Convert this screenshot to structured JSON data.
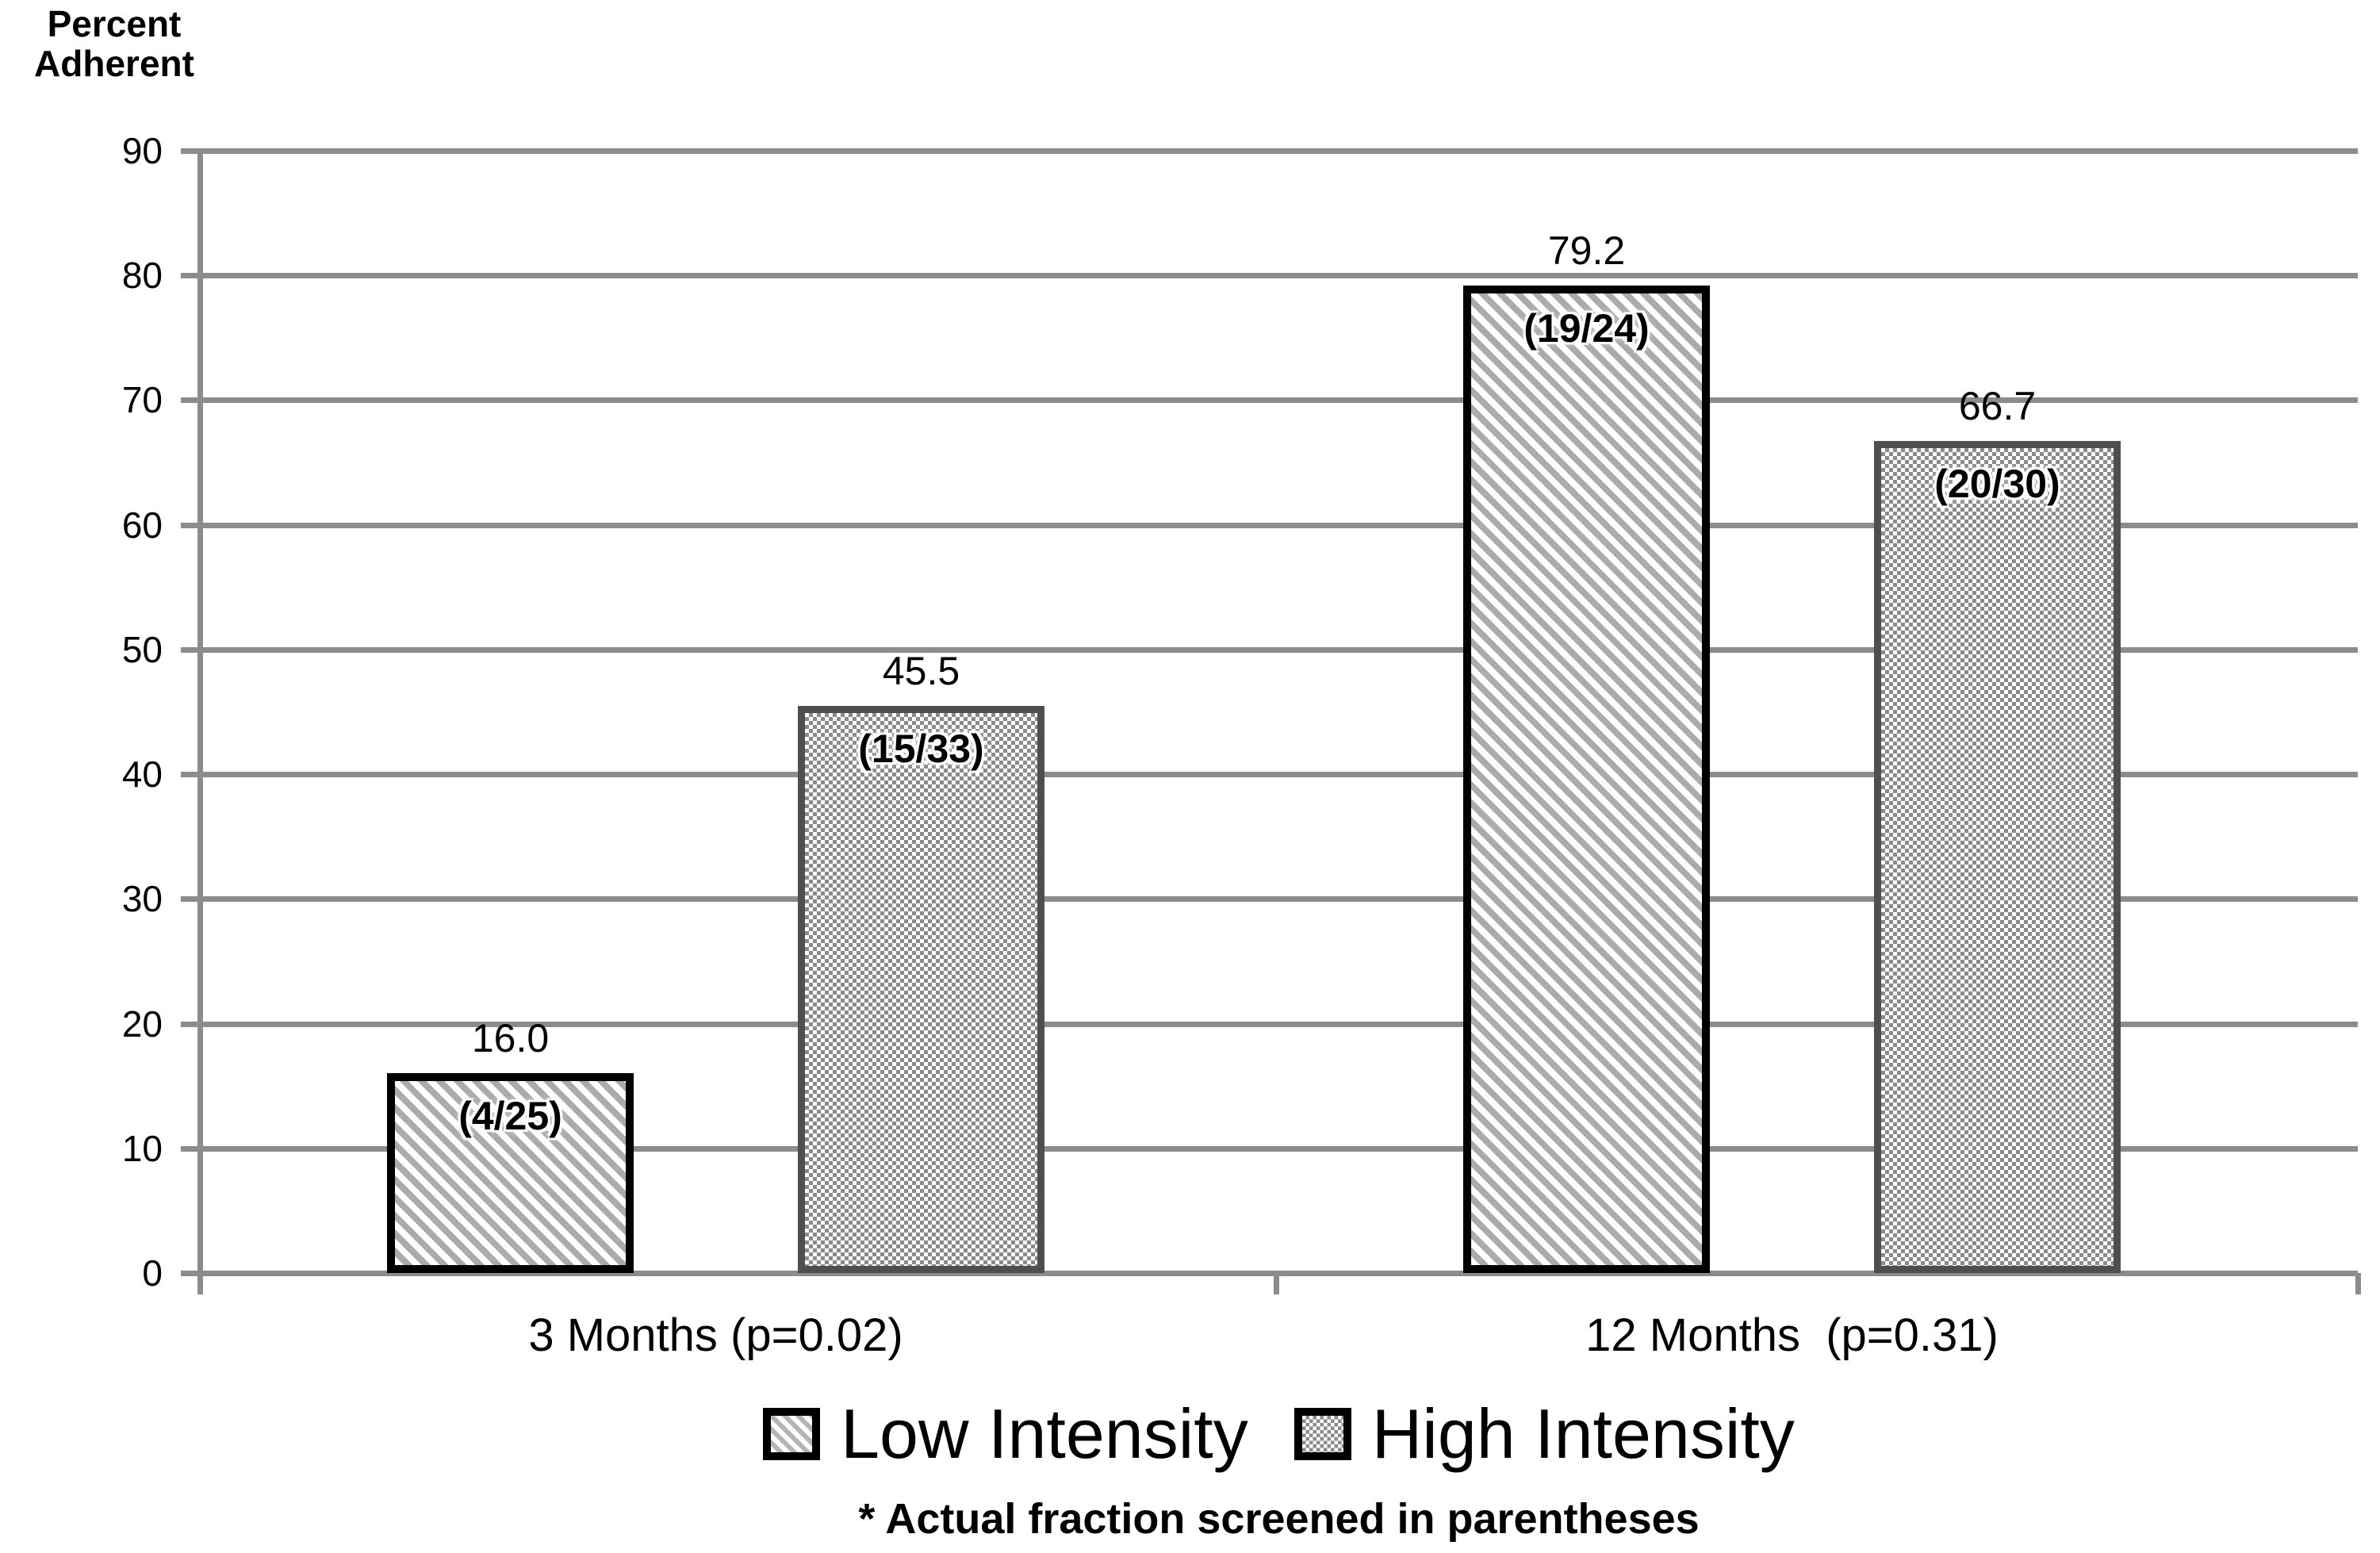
{
  "chart_data": {
    "type": "bar",
    "title": "",
    "ylabel": "Percent Adherent",
    "xlabel": "",
    "ylim": [
      0,
      90
    ],
    "yticks": [
      0,
      10,
      20,
      30,
      40,
      50,
      60,
      70,
      80,
      90
    ],
    "grid": true,
    "legend_position": "bottom",
    "categories": [
      "3 Months (p=0.02)",
      "12 Months  (p=0.31)"
    ],
    "series": [
      {
        "name": "Low Intensity",
        "pattern": "diagonal-hatch",
        "values": [
          16.0,
          79.2
        ],
        "value_labels": [
          "16.0",
          "79.2"
        ],
        "fractions": [
          "(4/25)",
          "(19/24)"
        ]
      },
      {
        "name": "High Intensity",
        "pattern": "checkerboard",
        "values": [
          45.5,
          66.7
        ],
        "value_labels": [
          "45.5",
          "66.7"
        ],
        "fractions": [
          "(15/33)",
          "(20/30)"
        ]
      }
    ],
    "footnote": "* Actual fraction screened in parentheses",
    "colors": {
      "text": "#000000",
      "gridline": "#8c8c8c",
      "hatch_stripe": "#ababab",
      "checker_gray": "#8a8a8a",
      "low_border": "#000000",
      "high_border": "#4e4e4e",
      "background": "#ffffff"
    }
  }
}
